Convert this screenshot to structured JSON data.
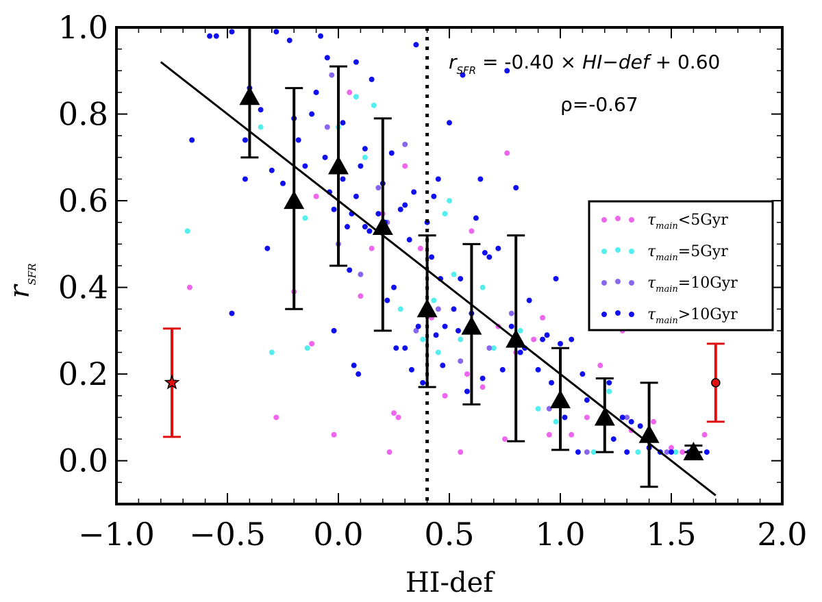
{
  "chart_data": {
    "type": "scatter",
    "xlabel": "HI-def",
    "ylabel": "r_SFR",
    "xlim": [
      -1.0,
      2.0
    ],
    "ylim": [
      -0.1,
      1.0
    ],
    "x_ticks": [
      -1.0,
      -0.5,
      0.0,
      0.5,
      1.0,
      1.5,
      2.0
    ],
    "x_tick_labels": [
      "−1.0",
      "−0.5",
      "0.0",
      "0.5",
      "1.0",
      "1.5",
      "2.0"
    ],
    "y_ticks": [
      0.0,
      0.2,
      0.4,
      0.6,
      0.8,
      1.0
    ],
    "y_tick_labels": [
      "0.0",
      "0.2",
      "0.4",
      "0.6",
      "0.8",
      "1.0"
    ],
    "vertical_line_x": 0.4,
    "fit_line": {
      "slope": -0.4,
      "intercept": 0.6,
      "x_range": [
        -0.8,
        1.7
      ]
    },
    "annotations": {
      "fit_label_pre": "r",
      "fit_label_pre_sub": "SFR",
      "fit_label_mid": " = -0.40 × ",
      "fit_label_var": "HI−def",
      "fit_label_post": " + 0.60",
      "rho_label": "ρ=-0.67"
    },
    "legend": {
      "position": "center-right",
      "entries": [
        {
          "symbol": "τ",
          "sub": "main",
          "label": "<5Gyr",
          "color": "#ee66ee"
        },
        {
          "symbol": "τ",
          "sub": "main",
          "label": "=5Gyr",
          "color": "#55eeee"
        },
        {
          "symbol": "τ",
          "sub": "main",
          "label": "=10Gyr",
          "color": "#8866ee"
        },
        {
          "symbol": "τ",
          "sub": "main",
          "label": ">10Gyr",
          "color": "#1010ee"
        }
      ]
    },
    "binned": {
      "x": [
        -0.4,
        -0.2,
        0.0,
        0.2,
        0.4,
        0.6,
        0.8,
        1.0,
        1.2,
        1.4,
        1.6
      ],
      "y": [
        0.84,
        0.6,
        0.68,
        0.54,
        0.35,
        0.31,
        0.28,
        0.14,
        0.1,
        0.06,
        0.02
      ],
      "err_low": [
        0.7,
        0.35,
        0.45,
        0.3,
        0.17,
        0.13,
        0.045,
        0.025,
        0.02,
        -0.06,
        0.02
      ],
      "err_high": [
        1.0,
        0.86,
        0.91,
        0.79,
        0.52,
        0.5,
        0.52,
        0.26,
        0.19,
        0.18,
        0.035
      ]
    },
    "reference_points": [
      {
        "name": "star",
        "x": -0.75,
        "y": 0.18,
        "err_low": 0.055,
        "err_high": 0.305,
        "color": "#e01010"
      },
      {
        "name": "circle",
        "x": 1.7,
        "y": 0.18,
        "err_low": 0.09,
        "err_high": 0.27,
        "color": "#e01010"
      }
    ],
    "series": [
      {
        "name": "tau_main<5Gyr",
        "color": "#ee66ee",
        "points": [
          [
            -0.67,
            0.4
          ],
          [
            -0.28,
            0.1
          ],
          [
            -0.12,
            0.27
          ],
          [
            -0.1,
            0.61
          ],
          [
            -0.02,
            0.06
          ],
          [
            0.05,
            0.85
          ],
          [
            0.15,
            0.49
          ],
          [
            0.23,
            0.02
          ],
          [
            0.25,
            0.11
          ],
          [
            0.27,
            0.1
          ],
          [
            0.3,
            0.68
          ],
          [
            0.37,
            0.49
          ],
          [
            0.42,
            0.33
          ],
          [
            0.48,
            0.15
          ],
          [
            0.55,
            0.02
          ],
          [
            0.6,
            0.53
          ],
          [
            0.65,
            0.17
          ],
          [
            0.72,
            0.31
          ],
          [
            0.75,
            0.05
          ],
          [
            0.76,
            0.71
          ],
          [
            0.88,
            0.28
          ],
          [
            0.95,
            0.06
          ],
          [
            1.05,
            0.06
          ],
          [
            1.12,
            0.1
          ],
          [
            1.18,
            0.22
          ],
          [
            1.28,
            0.3
          ],
          [
            1.32,
            0.07
          ],
          [
            1.38,
            0.05
          ],
          [
            1.42,
            0.09
          ],
          [
            1.5,
            0.03
          ],
          [
            1.65,
            0.06
          ],
          [
            1.55,
            0.02
          ],
          [
            0.2,
            0.57
          ],
          [
            0.1,
            0.38
          ],
          [
            -0.2,
            0.39
          ],
          [
            0.58,
            0.2
          ],
          [
            0.8,
            0.25
          ],
          [
            0.92,
            0.33
          ]
        ]
      },
      {
        "name": "tau_main=5Gyr",
        "color": "#55eeee",
        "points": [
          [
            -0.68,
            0.53
          ],
          [
            -0.35,
            0.77
          ],
          [
            -0.3,
            0.25
          ],
          [
            -0.15,
            0.56
          ],
          [
            -0.14,
            0.26
          ],
          [
            0.0,
            0.77
          ],
          [
            0.08,
            0.84
          ],
          [
            0.12,
            0.7
          ],
          [
            0.16,
            0.82
          ],
          [
            0.28,
            0.35
          ],
          [
            0.38,
            0.28
          ],
          [
            0.43,
            0.37
          ],
          [
            0.48,
            0.57
          ],
          [
            0.5,
            0.6
          ],
          [
            0.52,
            0.43
          ],
          [
            0.55,
            0.28
          ],
          [
            0.7,
            0.26
          ],
          [
            0.82,
            0.3
          ],
          [
            0.9,
            0.12
          ],
          [
            0.98,
            0.09
          ],
          [
            1.15,
            0.02
          ],
          [
            1.22,
            0.16
          ],
          [
            1.35,
            0.02
          ],
          [
            1.52,
            0.02
          ],
          [
            0.65,
            0.4
          ],
          [
            0.45,
            0.25
          ]
        ]
      },
      {
        "name": "tau_main=10Gyr",
        "color": "#8866ee",
        "points": [
          [
            -0.05,
            0.77
          ],
          [
            -0.03,
            0.89
          ],
          [
            0.0,
            0.5
          ],
          [
            0.1,
            0.43
          ],
          [
            0.18,
            0.63
          ],
          [
            0.3,
            0.73
          ],
          [
            0.45,
            0.35
          ],
          [
            0.55,
            0.23
          ],
          [
            0.68,
            0.26
          ],
          [
            0.78,
            0.34
          ],
          [
            0.95,
            0.12
          ],
          [
            1.12,
            0.02
          ],
          [
            1.3,
            0.1
          ],
          [
            1.48,
            0.02
          ],
          [
            0.35,
            0.3
          ],
          [
            0.22,
            0.55
          ]
        ]
      },
      {
        "name": "tau_main>10Gyr",
        "color": "#1010ee",
        "points": [
          [
            -0.55,
            0.98
          ],
          [
            -0.48,
            0.99
          ],
          [
            -0.4,
            0.86
          ],
          [
            -0.35,
            0.81
          ],
          [
            -0.42,
            0.74
          ],
          [
            -0.42,
            0.65
          ],
          [
            -0.3,
            0.67
          ],
          [
            -0.28,
            0.99
          ],
          [
            -0.25,
            0.64
          ],
          [
            -0.22,
            0.97
          ],
          [
            -0.2,
            0.79
          ],
          [
            -0.18,
            0.74
          ],
          [
            -0.15,
            0.68
          ],
          [
            -0.12,
            0.8
          ],
          [
            -0.1,
            0.85
          ],
          [
            -0.08,
            0.98
          ],
          [
            -0.06,
            0.7
          ],
          [
            -0.05,
            0.93
          ],
          [
            -0.04,
            0.62
          ],
          [
            -0.02,
            0.58
          ],
          [
            0.02,
            0.78
          ],
          [
            0.02,
            0.65
          ],
          [
            0.04,
            0.54
          ],
          [
            0.05,
            0.44
          ],
          [
            0.06,
            0.57
          ],
          [
            0.08,
            0.61
          ],
          [
            0.08,
            0.92
          ],
          [
            0.1,
            0.68
          ],
          [
            0.12,
            0.54
          ],
          [
            0.14,
            0.53
          ],
          [
            0.15,
            0.88
          ],
          [
            0.18,
            0.57
          ],
          [
            0.2,
            0.64
          ],
          [
            0.21,
            0.55
          ],
          [
            0.22,
            0.37
          ],
          [
            0.24,
            0.71
          ],
          [
            0.25,
            0.4
          ],
          [
            0.28,
            0.58
          ],
          [
            0.3,
            0.59
          ],
          [
            0.32,
            0.51
          ],
          [
            0.34,
            0.62
          ],
          [
            0.35,
            0.96
          ],
          [
            0.36,
            0.31
          ],
          [
            0.38,
            0.18
          ],
          [
            0.4,
            0.55
          ],
          [
            0.42,
            0.47
          ],
          [
            0.43,
            0.61
          ],
          [
            0.44,
            0.29
          ],
          [
            0.45,
            0.65
          ],
          [
            0.46,
            0.42
          ],
          [
            0.48,
            0.31
          ],
          [
            0.5,
            0.78
          ],
          [
            0.52,
            0.35
          ],
          [
            0.55,
            0.42
          ],
          [
            0.56,
            0.89
          ],
          [
            0.58,
            0.16
          ],
          [
            0.6,
            0.34
          ],
          [
            0.62,
            0.56
          ],
          [
            0.64,
            0.65
          ],
          [
            0.65,
            0.19
          ],
          [
            0.66,
            0.48
          ],
          [
            0.68,
            0.47
          ],
          [
            0.72,
            0.49
          ],
          [
            0.74,
            0.21
          ],
          [
            0.76,
            0.9
          ],
          [
            0.78,
            0.31
          ],
          [
            0.8,
            0.63
          ],
          [
            0.82,
            0.25
          ],
          [
            0.84,
            0.26
          ],
          [
            0.86,
            0.37
          ],
          [
            0.9,
            0.21
          ],
          [
            0.92,
            0.28
          ],
          [
            0.94,
            0.29
          ],
          [
            0.96,
            0.18
          ],
          [
            0.98,
            0.42
          ],
          [
            1.0,
            0.27
          ],
          [
            1.02,
            0.1
          ],
          [
            1.05,
            0.28
          ],
          [
            1.08,
            0.02
          ],
          [
            1.1,
            0.2
          ],
          [
            1.12,
            0.14
          ],
          [
            1.18,
            0.09
          ],
          [
            1.22,
            0.18
          ],
          [
            1.24,
            0.05
          ],
          [
            1.28,
            0.1
          ],
          [
            1.3,
            0.02
          ],
          [
            1.32,
            0.09
          ],
          [
            1.36,
            0.08
          ],
          [
            1.4,
            0.03
          ],
          [
            1.45,
            0.02
          ],
          [
            1.5,
            0.02
          ],
          [
            1.58,
            0.02
          ],
          [
            1.6,
            0.03
          ],
          [
            1.66,
            0.02
          ],
          [
            -0.48,
            0.34
          ],
          [
            -0.32,
            0.49
          ],
          [
            -0.02,
            0.3
          ],
          [
            0.07,
            0.22
          ],
          [
            0.09,
            0.2
          ],
          [
            0.3,
            0.26
          ],
          [
            0.12,
            0.72
          ],
          [
            -0.58,
            0.98
          ],
          [
            -0.66,
            0.74
          ],
          [
            0.26,
            0.26
          ],
          [
            0.33,
            0.21
          ],
          [
            0.47,
            0.22
          ],
          [
            0.54,
            0.3
          ]
        ]
      }
    ]
  }
}
